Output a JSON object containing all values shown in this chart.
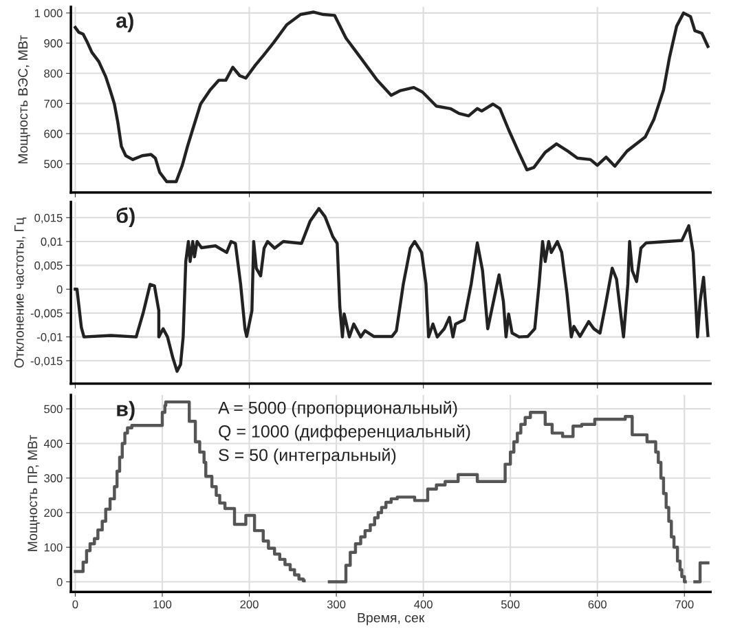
{
  "chart_data": [
    {
      "type": "line",
      "title": "а)",
      "ylabel": "Мощность ВЭС, МВт",
      "xlim": [
        -5,
        730
      ],
      "xticks": [
        {
          "value": 0,
          "label": null
        },
        {
          "value": 200,
          "label": null
        },
        {
          "value": 400,
          "label": null
        },
        {
          "value": 600,
          "label": null
        }
      ],
      "ylim": [
        405,
        1020
      ],
      "yticks": [
        500,
        600,
        700,
        800,
        900,
        {
          "value": 1000,
          "label": "1 000"
        }
      ],
      "tick_labels": "y",
      "grid": true,
      "marker": "none",
      "line_style": "solid",
      "series": [
        {
          "color": "#222222",
          "x": [
            0,
            4,
            9,
            14,
            19,
            27,
            35,
            40,
            45,
            49,
            53,
            58,
            66,
            77,
            87,
            92,
            97,
            105,
            116,
            123,
            129,
            134,
            144,
            155,
            165,
            173,
            181,
            189,
            196,
            207,
            217,
            228,
            243,
            259,
            274,
            285,
            298,
            311,
            327,
            347,
            363,
            373,
            389,
            399,
            415,
            431,
            441,
            452,
            462,
            467,
            480,
            488,
            498,
            509,
            519,
            527,
            540,
            553,
            566,
            577,
            592,
            600,
            610,
            620,
            634,
            655,
            665,
            676,
            683,
            691,
            699,
            707,
            712,
            720,
            727
          ],
          "values": [
            952,
            936,
            930,
            902,
            870,
            839,
            789,
            745,
            698,
            636,
            558,
            527,
            514,
            527,
            531,
            519,
            472,
            441,
            441,
            495,
            558,
            605,
            698,
            745,
            777,
            777,
            820,
            792,
            784,
            827,
            862,
            902,
            961,
            995,
            1003,
            995,
            992,
            917,
            855,
            777,
            727,
            742,
            753,
            738,
            691,
            683,
            667,
            659,
            683,
            675,
            698,
            683,
            613,
            542,
            480,
            488,
            538,
            566,
            542,
            519,
            514,
            495,
            522,
            492,
            542,
            589,
            648,
            745,
            855,
            956,
            1000,
            988,
            941,
            933,
            889
          ]
        }
      ]
    },
    {
      "type": "line",
      "title": "б)",
      "ylabel": "Отклонение частоты, Гц",
      "xlim": [
        -5,
        730
      ],
      "xticks": [
        {
          "value": 0,
          "label": null
        },
        {
          "value": 200,
          "label": null
        },
        {
          "value": 400,
          "label": null
        },
        {
          "value": 600,
          "label": null
        }
      ],
      "ylim": [
        -0.0198,
        0.0183
      ],
      "yticks": [
        {
          "value": -0.015,
          "label": "-0,015"
        },
        {
          "value": -0.01,
          "label": "-0,01"
        },
        {
          "value": -0.005,
          "label": "-0,005"
        },
        0,
        {
          "value": 0.005,
          "label": "0,005"
        },
        {
          "value": 0.01,
          "label": "0,01"
        },
        {
          "value": 0.015,
          "label": "0,015"
        }
      ],
      "tick_labels": "y",
      "grid": true,
      "marker": "none",
      "line_style": "solid",
      "series": [
        {
          "color": "#222222",
          "x": [
            0,
            2,
            7,
            10,
            41,
            70,
            78,
            86,
            91,
            96,
            96,
            101,
            106,
            112,
            117,
            121,
            124,
            127,
            130,
            132,
            135,
            137,
            140,
            145,
            161,
            174,
            179,
            184,
            190,
            195,
            197,
            203,
            205,
            208,
            213,
            217,
            221,
            229,
            239,
            260,
            270,
            280,
            287,
            296,
            301,
            304,
            307,
            309,
            315,
            320,
            328,
            333,
            343,
            364,
            369,
            377,
            385,
            390,
            398,
            403,
            406,
            411,
            416,
            424,
            430,
            434,
            437,
            447,
            455,
            462,
            468,
            474,
            481,
            487,
            492,
            495,
            498,
            502,
            510,
            520,
            528,
            533,
            537,
            540,
            544,
            547,
            554,
            559,
            565,
            570,
            573,
            580,
            590,
            596,
            603,
            609,
            617,
            622,
            630,
            635,
            637,
            640,
            645,
            650,
            656,
            697,
            705,
            710,
            715,
            718,
            722,
            727
          ],
          "values": [
            0,
            0,
            -0.008,
            -0.01,
            -0.0097,
            -0.01,
            -0.005,
            0.001,
            0.0007,
            -0.0045,
            -0.01,
            -0.0083,
            -0.01,
            -0.0143,
            -0.0172,
            -0.0158,
            -0.01,
            0.0058,
            0.01,
            0.0058,
            0.01,
            0.0068,
            0.01,
            0.0087,
            0.0091,
            0.0077,
            0.01,
            0.0096,
            0.0011,
            -0.0083,
            -0.0099,
            -0.0045,
            0.01,
            0.0044,
            0.0028,
            0.0086,
            0.01,
            0.0086,
            0.01,
            0.0096,
            0.0143,
            0.0169,
            0.0152,
            0.011,
            0.0096,
            -0.0036,
            -0.01,
            -0.0052,
            -0.01,
            -0.0073,
            -0.01,
            -0.0087,
            -0.0099,
            -0.0099,
            -0.0087,
            0.0011,
            0.0086,
            0.01,
            0.0077,
            0.0011,
            -0.01,
            -0.0073,
            -0.01,
            -0.0083,
            -0.0059,
            -0.01,
            -0.0073,
            -0.0064,
            0.0011,
            0.0097,
            0.0039,
            -0.0083,
            -0.0022,
            0.003,
            -0.0026,
            -0.01,
            -0.0052,
            -0.0092,
            -0.01,
            -0.0099,
            -0.0083,
            0.0011,
            0.01,
            0.0058,
            0.01,
            0.0077,
            0.01,
            0.0077,
            -0.0008,
            -0.01,
            -0.0078,
            -0.0099,
            -0.0068,
            -0.0083,
            -0.0092,
            -0.0036,
            0.0044,
            0.0021,
            -0.01,
            0.0011,
            0.01,
            0.0039,
            0.0016,
            0.0086,
            0.0097,
            0.0102,
            0.0133,
            0.0077,
            -0.01,
            -0.0026,
            0.0025,
            -0.0097
          ]
        }
      ]
    },
    {
      "type": "step",
      "title": "в)",
      "ylabel": "Мощность ПР, МВт",
      "xlabel": "Время, сек",
      "xlim": [
        -5,
        730
      ],
      "xticks": [
        0,
        100,
        200,
        300,
        400,
        500,
        600,
        700
      ],
      "ylim": [
        -29,
        540
      ],
      "yticks": [
        0,
        100,
        200,
        300,
        400,
        500
      ],
      "grid": true,
      "marker": "none",
      "line_style": "solid",
      "annotations": [
        "A = 5000 (пропорциональный)",
        "Q = 1000 (дифференциальный)",
        "S = 50 (интегральный)"
      ],
      "series": [
        {
          "color": "#555555",
          "x": [
            0,
            9,
            13,
            17,
            22,
            26,
            31,
            35,
            40,
            45,
            48,
            51,
            54,
            57,
            60,
            65,
            100,
            103,
            104,
            127,
            131,
            138,
            143,
            148,
            150,
            157,
            162,
            166,
            172,
            183,
            196,
            206,
            216,
            222,
            229,
            235,
            241,
            247,
            252,
            257,
            262,
            263,
            292,
            307,
            311,
            316,
            322,
            328,
            333,
            339,
            344,
            348,
            352,
            357,
            363,
            370,
            390,
            405,
            415,
            425,
            440,
            462,
            494,
            500,
            504,
            508,
            512,
            517,
            523,
            540,
            548,
            560,
            572,
            582,
            597,
            632,
            640,
            657,
            667,
            670,
            673,
            676,
            679,
            682,
            685,
            688,
            692,
            695,
            697,
            700,
            701,
            712,
            718,
            727
          ],
          "values": [
            30,
            57,
            90,
            110,
            125,
            150,
            175,
            210,
            240,
            275,
            320,
            360,
            400,
            430,
            445,
            452,
            490,
            510,
            520,
            520,
            464,
            405,
            375,
            345,
            305,
            275,
            250,
            228,
            212,
            166,
            192,
            148,
            118,
            97,
            80,
            65,
            50,
            35,
            20,
            8,
            3,
            null,
            0,
            0,
            48,
            85,
            110,
            130,
            148,
            165,
            185,
            200,
            215,
            230,
            240,
            245,
            235,
            268,
            280,
            290,
            310,
            290,
            340,
            375,
            405,
            430,
            455,
            475,
            490,
            455,
            430,
            420,
            450,
            455,
            470,
            478,
            425,
            405,
            375,
            345,
            300,
            255,
            215,
            175,
            130,
            100,
            60,
            35,
            15,
            0,
            null,
            0,
            55,
            55
          ]
        }
      ]
    }
  ]
}
